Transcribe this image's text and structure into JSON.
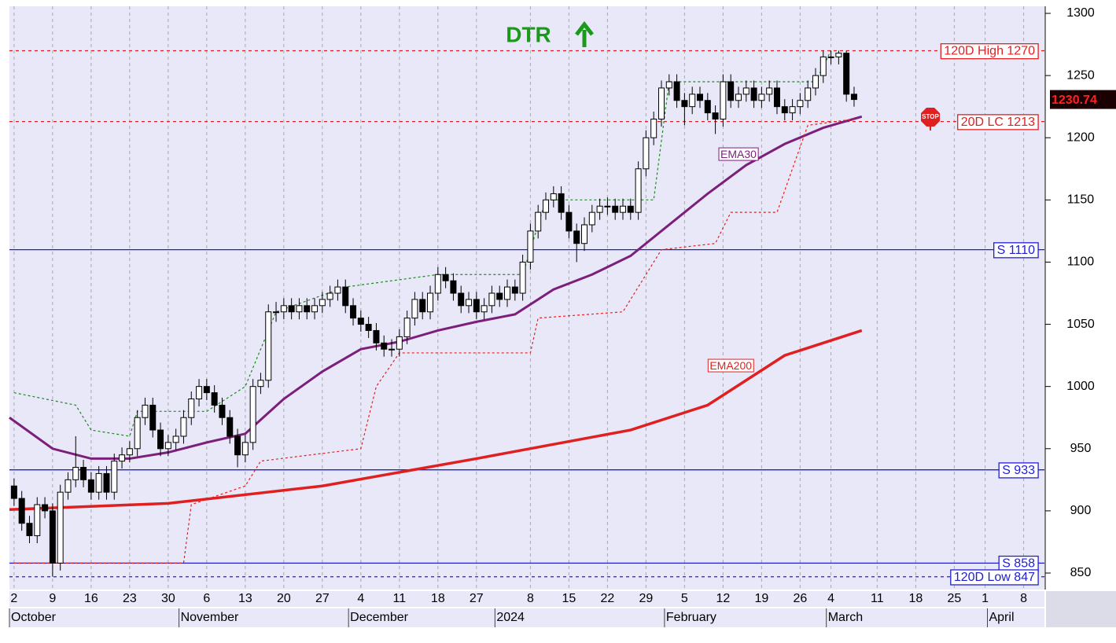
{
  "chart_data": {
    "type": "candlestick",
    "title": "DTR",
    "x": [
      0,
      1,
      2,
      3,
      4,
      5,
      6,
      7,
      8,
      9,
      10,
      11,
      12,
      13,
      14,
      15,
      16,
      17,
      18,
      19,
      20,
      21,
      22,
      23,
      24,
      25,
      26,
      27,
      28,
      29,
      30,
      31,
      32,
      33,
      34,
      35,
      36,
      37,
      38,
      39,
      40,
      41,
      42,
      43,
      44,
      45,
      46,
      47,
      48,
      49,
      50,
      51,
      52,
      53,
      54,
      55,
      56,
      57,
      58,
      59,
      60,
      61,
      62,
      63,
      64,
      65,
      66,
      67,
      68,
      69,
      70,
      71,
      72,
      73,
      74,
      75,
      76,
      77,
      78,
      79,
      80,
      81,
      82,
      83,
      84,
      85,
      86,
      87,
      88,
      89,
      90,
      91,
      92,
      93,
      94,
      95,
      96,
      97,
      98,
      99,
      100,
      101,
      102,
      103,
      104,
      105,
      106,
      107,
      108,
      109
    ],
    "open": [
      920,
      910,
      890,
      880,
      905,
      900,
      858,
      915,
      925,
      935,
      925,
      915,
      930,
      915,
      940,
      945,
      950,
      975,
      985,
      965,
      950,
      955,
      960,
      975,
      990,
      1000,
      995,
      985,
      975,
      960,
      945,
      955,
      1000,
      1005,
      1060,
      1060,
      1065,
      1060,
      1065,
      1060,
      1065,
      1070,
      1075,
      1080,
      1065,
      1055,
      1050,
      1045,
      1035,
      1030,
      1030,
      1040,
      1055,
      1070,
      1060,
      1075,
      1090,
      1085,
      1075,
      1065,
      1070,
      1060,
      1065,
      1075,
      1070,
      1080,
      1075,
      1100,
      1125,
      1140,
      1150,
      1155,
      1140,
      1125,
      1115,
      1130,
      1140,
      1145,
      1145,
      1140,
      1145,
      1140,
      1175,
      1200,
      1215,
      1240,
      1245,
      1230,
      1225,
      1235,
      1230,
      1220,
      1215,
      1245,
      1230,
      1235,
      1240,
      1230,
      1235,
      1240,
      1225,
      1220,
      1225,
      1230,
      1240,
      1250,
      1265,
      1265,
      1268,
      1235
    ],
    "high": [
      926,
      916,
      896,
      911,
      911,
      906,
      921,
      931,
      960,
      941,
      931,
      936,
      936,
      946,
      951,
      956,
      981,
      991,
      991,
      971,
      961,
      966,
      981,
      996,
      1006,
      1006,
      1001,
      991,
      981,
      966,
      961,
      1006,
      1011,
      1066,
      1068,
      1071,
      1071,
      1071,
      1071,
      1071,
      1076,
      1081,
      1086,
      1086,
      1071,
      1061,
      1056,
      1051,
      1041,
      1038,
      1046,
      1061,
      1076,
      1076,
      1081,
      1096,
      1096,
      1091,
      1081,
      1076,
      1076,
      1071,
      1081,
      1081,
      1086,
      1086,
      1106,
      1131,
      1146,
      1156,
      1161,
      1161,
      1146,
      1131,
      1136,
      1146,
      1151,
      1152,
      1151,
      1151,
      1151,
      1181,
      1206,
      1221,
      1246,
      1251,
      1251,
      1236,
      1241,
      1241,
      1236,
      1226,
      1251,
      1251,
      1241,
      1246,
      1246,
      1241,
      1246,
      1246,
      1231,
      1231,
      1236,
      1246,
      1256,
      1270,
      1270,
      1270,
      1270,
      1241
    ],
    "low": [
      904,
      884,
      874,
      874,
      894,
      847,
      852,
      909,
      919,
      919,
      909,
      909,
      909,
      909,
      934,
      939,
      944,
      969,
      959,
      944,
      944,
      949,
      954,
      969,
      984,
      989,
      979,
      969,
      954,
      935,
      939,
      949,
      994,
      999,
      1052,
      1054,
      1054,
      1054,
      1054,
      1054,
      1059,
      1064,
      1069,
      1059,
      1049,
      1044,
      1039,
      1029,
      1024,
      1024,
      1024,
      1034,
      1049,
      1054,
      1054,
      1069,
      1079,
      1069,
      1059,
      1059,
      1054,
      1054,
      1059,
      1064,
      1064,
      1069,
      1069,
      1094,
      1119,
      1134,
      1144,
      1134,
      1119,
      1100,
      1109,
      1124,
      1134,
      1138,
      1134,
      1134,
      1134,
      1134,
      1169,
      1194,
      1209,
      1234,
      1224,
      1210,
      1219,
      1224,
      1214,
      1203,
      1209,
      1224,
      1224,
      1229,
      1224,
      1224,
      1229,
      1219,
      1214,
      1214,
      1219,
      1224,
      1234,
      1244,
      1259,
      1259,
      1229,
      1225
    ],
    "close": [
      910,
      890,
      880,
      905,
      900,
      858,
      915,
      925,
      935,
      925,
      915,
      930,
      915,
      940,
      945,
      950,
      975,
      985,
      965,
      950,
      955,
      960,
      975,
      990,
      1000,
      995,
      985,
      975,
      960,
      945,
      955,
      1000,
      1005,
      1060,
      1060,
      1065,
      1060,
      1065,
      1060,
      1065,
      1070,
      1075,
      1080,
      1065,
      1055,
      1050,
      1045,
      1035,
      1030,
      1030,
      1040,
      1055,
      1070,
      1060,
      1075,
      1090,
      1085,
      1075,
      1065,
      1070,
      1060,
      1065,
      1075,
      1070,
      1080,
      1075,
      1100,
      1125,
      1140,
      1150,
      1155,
      1140,
      1125,
      1115,
      1130,
      1140,
      1145,
      1145,
      1140,
      1145,
      1140,
      1175,
      1200,
      1215,
      1240,
      1245,
      1230,
      1225,
      1235,
      1230,
      1220,
      1215,
      1245,
      1230,
      1235,
      1240,
      1230,
      1235,
      1240,
      1225,
      1220,
      1225,
      1230,
      1240,
      1250,
      1265,
      1265,
      1268,
      1235,
      1230.74
    ],
    "last_price": 1230.74,
    "up_color": "#ffffff",
    "down_color": "#000000",
    "lines": [
      {
        "name": "EMA30",
        "color": "#7b1f7b",
        "width": 3,
        "dash": false,
        "x": [
          -0.6,
          5,
          10,
          15,
          20,
          25,
          30,
          35,
          40,
          45,
          50,
          55,
          60,
          65,
          70,
          75,
          80,
          85,
          90,
          95,
          100,
          105,
          110
        ],
        "values": [
          975,
          950,
          942,
          942,
          947,
          955,
          962,
          990,
          1012,
          1030,
          1036,
          1045,
          1052,
          1058,
          1078,
          1090,
          1105,
          1130,
          1155,
          1178,
          1195,
          1208,
          1217
        ],
        "label_x": 94,
        "label_value": 1186
      },
      {
        "name": "EMA200",
        "color": "#e02020",
        "width": 3.5,
        "dash": false,
        "x": [
          -0.6,
          20,
          40,
          60,
          80,
          90,
          100,
          110
        ],
        "values": [
          901,
          906,
          920,
          942,
          965,
          985,
          1025,
          1045
        ],
        "label_x": 93,
        "label_value": 1016
      },
      {
        "color": "#e02020",
        "width": 1.2,
        "dash": true,
        "x": [
          0,
          22,
          23,
          30,
          32,
          45,
          47,
          50,
          67,
          68,
          79,
          81,
          84,
          91,
          93,
          99,
          103,
          109
        ],
        "values": [
          858,
          858,
          905,
          920,
          940,
          950,
          1000,
          1027,
          1027,
          1055,
          1060,
          1080,
          1110,
          1115,
          1140,
          1140,
          1210,
          1215
        ]
      },
      {
        "color": "#1a8a1a",
        "width": 1.2,
        "dash": true,
        "x": [
          0,
          8,
          10,
          15,
          16,
          25,
          30,
          34,
          43,
          55,
          66,
          69,
          83,
          85,
          104,
          106
        ],
        "values": [
          995,
          985,
          965,
          960,
          980,
          980,
          1000,
          1060,
          1080,
          1090,
          1090,
          1150,
          1150,
          1245,
          1245,
          1270
        ]
      }
    ],
    "levels": [
      {
        "label": "120D High 1270",
        "value": 1270,
        "color": "#e02020",
        "dash": true
      },
      {
        "label": "20D LC 1213",
        "value": 1213,
        "color": "#e02020",
        "dash": true
      },
      {
        "label": "S 1110",
        "value": 1110,
        "color": "#2020d0",
        "dash": false
      },
      {
        "label": "S 933",
        "value": 933,
        "color": "#2020d0",
        "dash": false
      },
      {
        "label": "S 858",
        "value": 858,
        "color": "#2020d0",
        "dash": false
      },
      {
        "label": "120D Low 847",
        "value": 847,
        "color": "#2020d0",
        "dash": true
      }
    ],
    "xlim": [
      -0.6,
      133.7
    ],
    "ylim": [
      850,
      1300
    ],
    "yticks": [
      850,
      900,
      950,
      1000,
      1050,
      1100,
      1150,
      1200,
      1250,
      1300
    ],
    "xticks": [
      {
        "value": 0,
        "label": "2"
      },
      {
        "value": 5,
        "label": "9"
      },
      {
        "value": 10,
        "label": "16"
      },
      {
        "value": 15,
        "label": "23"
      },
      {
        "value": 20,
        "label": "30"
      },
      {
        "value": 25,
        "label": "6"
      },
      {
        "value": 30,
        "label": "13"
      },
      {
        "value": 35,
        "label": "20"
      },
      {
        "value": 40,
        "label": "27"
      },
      {
        "value": 45,
        "label": "4"
      },
      {
        "value": 50,
        "label": "11"
      },
      {
        "value": 55,
        "label": "18"
      },
      {
        "value": 60,
        "label": "27"
      },
      {
        "value": 67,
        "label": "8"
      },
      {
        "value": 72,
        "label": "15"
      },
      {
        "value": 77,
        "label": "22"
      },
      {
        "value": 82,
        "label": "29"
      },
      {
        "value": 87,
        "label": "5"
      },
      {
        "value": 92,
        "label": "12"
      },
      {
        "value": 97,
        "label": "19"
      },
      {
        "value": 102,
        "label": "26"
      },
      {
        "value": 106,
        "label": "4"
      },
      {
        "value": 112,
        "label": "11"
      },
      {
        "value": 117,
        "label": "18"
      },
      {
        "value": 122,
        "label": "25"
      },
      {
        "value": 126,
        "label": "1"
      },
      {
        "value": 131,
        "label": "8"
      }
    ],
    "months": [
      {
        "value": -0.6,
        "label": "October"
      },
      {
        "value": 21.4,
        "label": "November"
      },
      {
        "value": 43.4,
        "label": "December"
      },
      {
        "value": 62.4,
        "label": "2024"
      },
      {
        "value": 84.4,
        "label": "February"
      },
      {
        "value": 105.4,
        "label": "March"
      },
      {
        "value": 126.3,
        "label": "April"
      }
    ]
  }
}
